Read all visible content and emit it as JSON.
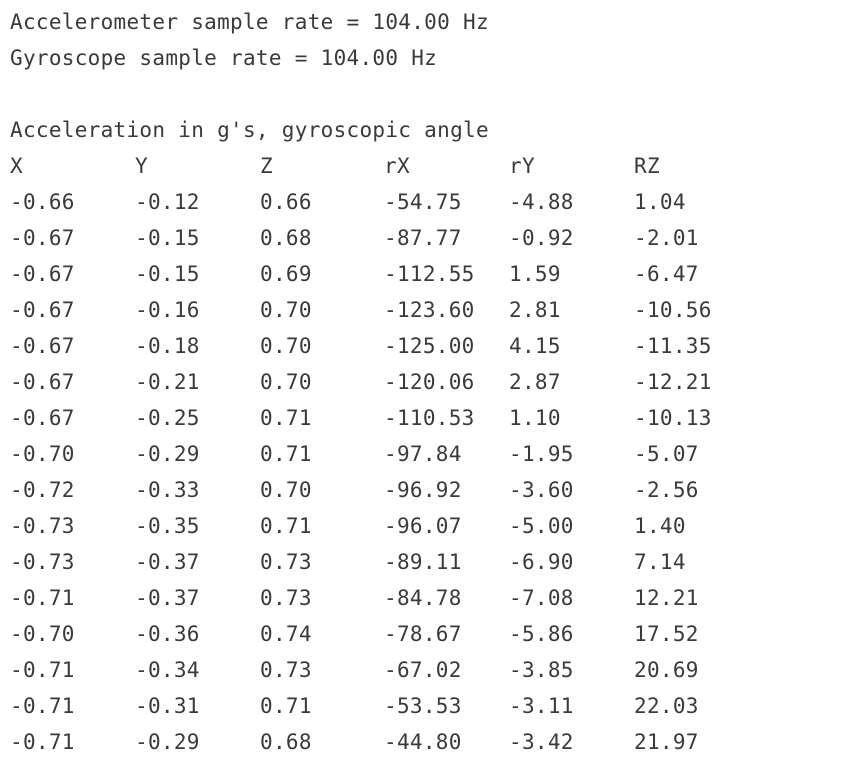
{
  "console": {
    "accel_rate_line": "Accelerometer sample rate = 104.00 Hz",
    "gyro_rate_line": "Gyroscope sample rate = 104.00 Hz",
    "section_heading": "Acceleration in g's, gyroscopic angle",
    "headers": [
      "X",
      "Y",
      "Z",
      "rX",
      "rY",
      "RZ"
    ],
    "rows": [
      [
        "-0.66",
        "-0.12",
        "0.66",
        "-54.75",
        "-4.88",
        "1.04"
      ],
      [
        "-0.67",
        "-0.15",
        "0.68",
        "-87.77",
        "-0.92",
        "-2.01"
      ],
      [
        "-0.67",
        "-0.15",
        "0.69",
        "-112.55",
        "1.59",
        "-6.47"
      ],
      [
        "-0.67",
        "-0.16",
        "0.70",
        "-123.60",
        "2.81",
        "-10.56"
      ],
      [
        "-0.67",
        "-0.18",
        "0.70",
        "-125.00",
        "4.15",
        "-11.35"
      ],
      [
        "-0.67",
        "-0.21",
        "0.70",
        "-120.06",
        "2.87",
        "-12.21"
      ],
      [
        "-0.67",
        "-0.25",
        "0.71",
        "-110.53",
        "1.10",
        "-10.13"
      ],
      [
        "-0.70",
        "-0.29",
        "0.71",
        "-97.84",
        "-1.95",
        "-5.07"
      ],
      [
        "-0.72",
        "-0.33",
        "0.70",
        "-96.92",
        "-3.60",
        "-2.56"
      ],
      [
        "-0.73",
        "-0.35",
        "0.71",
        "-96.07",
        "-5.00",
        "1.40"
      ],
      [
        "-0.73",
        "-0.37",
        "0.73",
        "-89.11",
        "-6.90",
        "7.14"
      ],
      [
        "-0.71",
        "-0.37",
        "0.73",
        "-84.78",
        "-7.08",
        "12.21"
      ],
      [
        "-0.70",
        "-0.36",
        "0.74",
        "-78.67",
        "-5.86",
        "17.52"
      ],
      [
        "-0.71",
        "-0.34",
        "0.73",
        "-67.02",
        "-3.85",
        "20.69"
      ],
      [
        "-0.71",
        "-0.31",
        "0.71",
        "-53.53",
        "-3.11",
        "22.03"
      ],
      [
        "-0.71",
        "-0.29",
        "0.68",
        "-44.80",
        "-3.42",
        "21.97"
      ]
    ]
  }
}
